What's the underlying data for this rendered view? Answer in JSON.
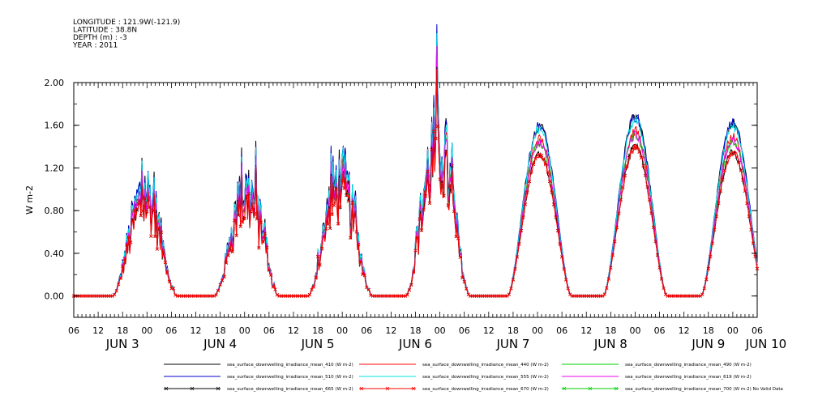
{
  "metadata": [
    "LONGITUDE : 121.9W(-121.9)",
    "LATITUDE : 38.8N",
    "DEPTH (m) : -3",
    "YEAR : 2011"
  ],
  "chart_data": {
    "type": "line",
    "ylabel": "W m-2",
    "ylim": [
      -0.2,
      2.0
    ],
    "yticks": [
      "0.00",
      "0.40",
      "0.80",
      "1.20",
      "1.60",
      "2.00"
    ],
    "ytick_values": [
      0.0,
      0.4,
      0.8,
      1.2,
      1.6,
      2.0
    ],
    "x_hour_ticks": [
      "06",
      "12",
      "18",
      "00",
      "06",
      "12",
      "18",
      "00",
      "06",
      "12",
      "18",
      "00",
      "06",
      "12",
      "18",
      "00",
      "06",
      "12",
      "18",
      "00",
      "06",
      "12",
      "18",
      "00",
      "06",
      "12",
      "18",
      "00",
      "06"
    ],
    "x_range_hours": [
      0,
      168
    ],
    "x_start": "2011-06-03T06:00",
    "date_labels": [
      "JUN 3",
      "JUN 4",
      "JUN 5",
      "JUN 6",
      "JUN 7",
      "JUN 8",
      "JUN 9",
      "JUN 10"
    ],
    "date_label_hours": [
      12,
      36,
      60,
      84,
      108,
      132,
      156,
      180
    ],
    "daily_peaks": [
      {
        "date": "JUN 3",
        "peak_hour": 17.5,
        "peak": 1.3,
        "noisy": true
      },
      {
        "date": "JUN 4",
        "peak_hour": 42.5,
        "peak": 1.3,
        "noisy": true
      },
      {
        "date": "JUN 5",
        "peak_hour": 65.5,
        "peak": 1.44,
        "noisy": true
      },
      {
        "date": "JUN 6",
        "peak_hour": 89.5,
        "peak": 1.95,
        "noisy": true
      },
      {
        "date": "JUN 7",
        "peak_hour": 114.5,
        "peak": 1.6,
        "noisy": false
      },
      {
        "date": "JUN 8",
        "peak_hour": 138.0,
        "peak": 1.68,
        "noisy": false
      },
      {
        "date": "JUN 9",
        "peak_hour": 162.0,
        "peak": 1.62,
        "noisy": false
      }
    ],
    "series": [
      {
        "name": "sea_surface_downwelling_irradiance_mean_410 (W m-2)",
        "color": "#000000",
        "scale": 1.0,
        "marker": false
      },
      {
        "name": "sea_surface_downwelling_irradiance_mean_440 (W m-2)",
        "color": "#ff0000",
        "scale": 0.92,
        "marker": false
      },
      {
        "name": "sea_surface_downwelling_irradiance_mean_490 (W m-2)",
        "color": "#00cc00",
        "scale": 0.9,
        "marker": false
      },
      {
        "name": "sea_surface_downwelling_irradiance_mean_510 (W m-2)",
        "color": "#0000cc",
        "scale": 1.0,
        "marker": false
      },
      {
        "name": "sea_surface_downwelling_irradiance_mean_555 (W m-2)",
        "color": "#00e5e5",
        "scale": 0.98,
        "marker": false
      },
      {
        "name": "sea_surface_downwelling_irradiance_mean_619 (W m-2)",
        "color": "#ee00ee",
        "scale": 0.9,
        "marker": false
      },
      {
        "name": "sea_surface_downwelling_irradiance_mean_665 (W m-2)",
        "color": "#000000",
        "scale": 0.83,
        "marker": true
      },
      {
        "name": "sea_surface_downwelling_irradiance_mean_670 (W m-2)",
        "color": "#ff0000",
        "scale": 0.83,
        "marker": true
      },
      {
        "name": "sea_surface_downwelling_irradiance_mean_700 (W m-2) No Valid Data",
        "color": "#00cc00",
        "scale": 0,
        "marker": true
      }
    ]
  }
}
